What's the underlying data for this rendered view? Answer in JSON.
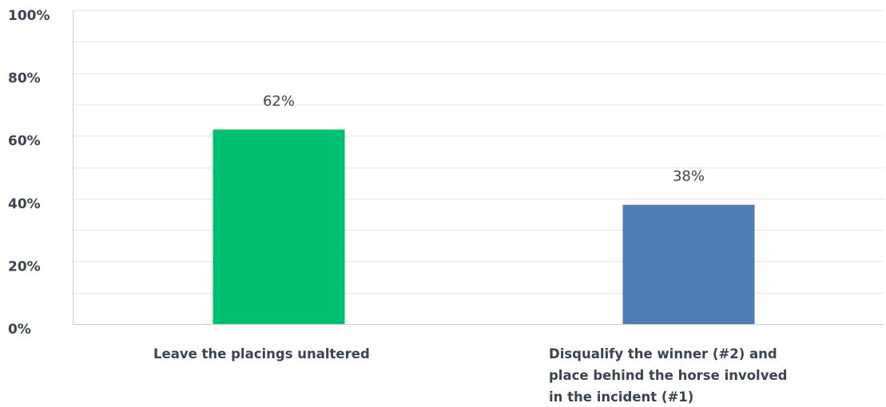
{
  "chart_data": {
    "type": "bar",
    "categories": [
      "Leave the placings unaltered",
      "Disqualify the winner (#2) and place behind the horse involved in the incident (#1)"
    ],
    "category_lines": [
      [
        "Leave the placings unaltered"
      ],
      [
        "Disqualify the winner (#2) and",
        "place behind the horse involved",
        "in the incident (#1)"
      ]
    ],
    "values": [
      62,
      38
    ],
    "data_labels": [
      "62%",
      "38%"
    ],
    "colors": [
      "#00bf6f",
      "#507cb6"
    ],
    "title": "",
    "xlabel": "",
    "ylabel": "",
    "ylim": [
      0,
      100
    ],
    "yticks": [
      0,
      20,
      40,
      60,
      80,
      100
    ],
    "ytick_labels": [
      "0%",
      "20%",
      "40%",
      "60%",
      "80%",
      "100%"
    ],
    "grid": true,
    "legend": "none"
  }
}
